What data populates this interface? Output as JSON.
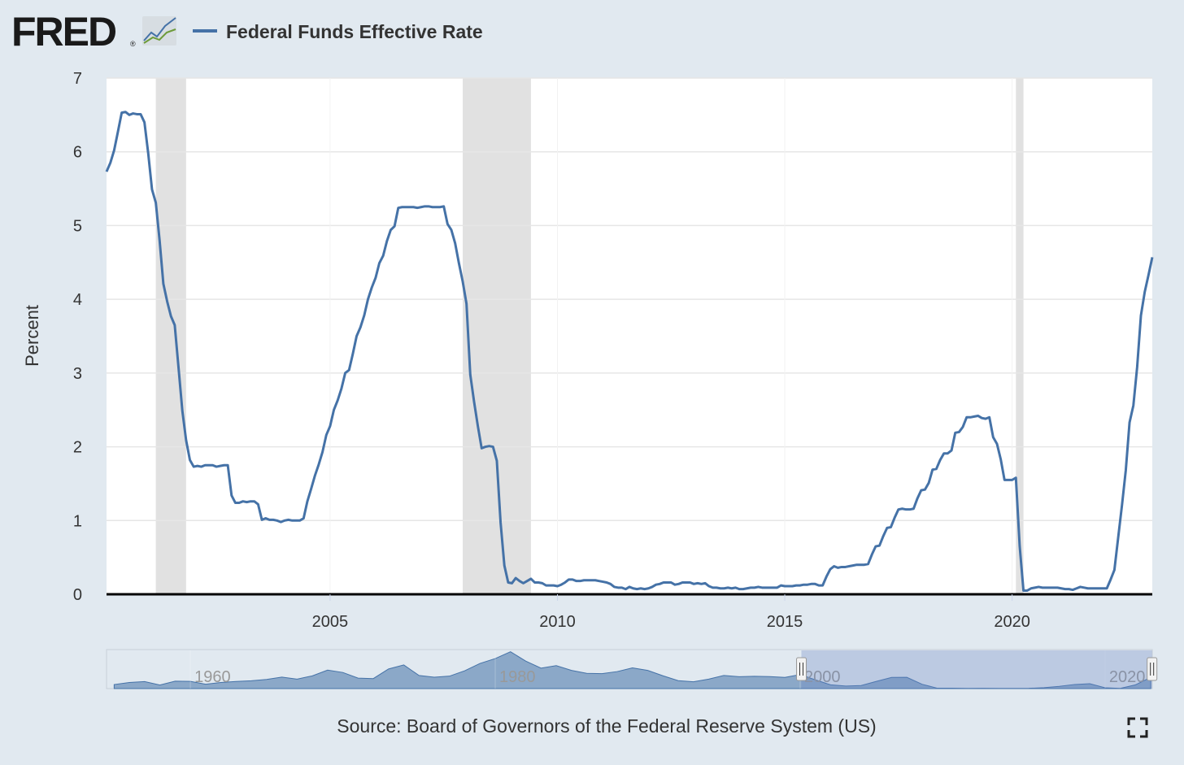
{
  "logo": "FRED",
  "logo_mark": "®",
  "chart_data": {
    "type": "line",
    "y_label": "Percent",
    "source": "Source: Board of Governors of the Federal Reserve System (US)",
    "x": [
      2000.083,
      2000.167,
      2000.25,
      2000.333,
      2000.417,
      2000.5,
      2000.583,
      2000.667,
      2000.75,
      2000.833,
      2000.917,
      2001,
      2001.083,
      2001.167,
      2001.25,
      2001.333,
      2001.417,
      2001.5,
      2001.583,
      2001.667,
      2001.75,
      2001.833,
      2001.917,
      2002,
      2002.083,
      2002.167,
      2002.25,
      2002.333,
      2002.417,
      2002.5,
      2002.583,
      2002.667,
      2002.75,
      2002.833,
      2002.917,
      2003,
      2003.083,
      2003.167,
      2003.25,
      2003.333,
      2003.417,
      2003.5,
      2003.583,
      2003.667,
      2003.75,
      2003.833,
      2003.917,
      2004,
      2004.083,
      2004.167,
      2004.25,
      2004.333,
      2004.417,
      2004.5,
      2004.583,
      2004.667,
      2004.75,
      2004.833,
      2004.917,
      2005,
      2005.083,
      2005.167,
      2005.25,
      2005.333,
      2005.417,
      2005.5,
      2005.583,
      2005.667,
      2005.75,
      2005.833,
      2005.917,
      2006,
      2006.083,
      2006.167,
      2006.25,
      2006.333,
      2006.417,
      2006.5,
      2006.583,
      2006.667,
      2006.75,
      2006.833,
      2006.917,
      2007,
      2007.083,
      2007.167,
      2007.25,
      2007.333,
      2007.417,
      2007.5,
      2007.583,
      2007.667,
      2007.75,
      2007.833,
      2007.917,
      2008,
      2008.083,
      2008.167,
      2008.25,
      2008.333,
      2008.417,
      2008.5,
      2008.583,
      2008.667,
      2008.75,
      2008.833,
      2008.917,
      2009,
      2009.083,
      2009.167,
      2009.25,
      2009.333,
      2009.417,
      2009.5,
      2009.583,
      2009.667,
      2009.75,
      2009.833,
      2009.917,
      2010,
      2010.083,
      2010.167,
      2010.25,
      2010.333,
      2010.417,
      2010.5,
      2010.583,
      2010.667,
      2010.75,
      2010.833,
      2010.917,
      2011,
      2011.083,
      2011.167,
      2011.25,
      2011.333,
      2011.417,
      2011.5,
      2011.583,
      2011.667,
      2011.75,
      2011.833,
      2011.917,
      2012,
      2012.083,
      2012.167,
      2012.25,
      2012.333,
      2012.417,
      2012.5,
      2012.583,
      2012.667,
      2012.75,
      2012.833,
      2012.917,
      2013,
      2013.083,
      2013.167,
      2013.25,
      2013.333,
      2013.417,
      2013.5,
      2013.583,
      2013.667,
      2013.75,
      2013.833,
      2013.917,
      2014,
      2014.083,
      2014.167,
      2014.25,
      2014.333,
      2014.417,
      2014.5,
      2014.583,
      2014.667,
      2014.75,
      2014.833,
      2014.917,
      2015,
      2015.083,
      2015.167,
      2015.25,
      2015.333,
      2015.417,
      2015.5,
      2015.583,
      2015.667,
      2015.75,
      2015.833,
      2015.917,
      2016,
      2016.083,
      2016.167,
      2016.25,
      2016.333,
      2016.417,
      2016.5,
      2016.583,
      2016.667,
      2016.75,
      2016.833,
      2016.917,
      2017,
      2017.083,
      2017.167,
      2017.25,
      2017.333,
      2017.417,
      2017.5,
      2017.583,
      2017.667,
      2017.75,
      2017.833,
      2017.917,
      2018,
      2018.083,
      2018.167,
      2018.25,
      2018.333,
      2018.417,
      2018.5,
      2018.583,
      2018.667,
      2018.75,
      2018.833,
      2018.917,
      2019,
      2019.083,
      2019.167,
      2019.25,
      2019.333,
      2019.417,
      2019.5,
      2019.583,
      2019.667,
      2019.75,
      2019.833,
      2019.917,
      2020,
      2020.083,
      2020.167,
      2020.25,
      2020.333,
      2020.417,
      2020.5,
      2020.583,
      2020.667,
      2020.75,
      2020.833,
      2020.917,
      2021,
      2021.083,
      2021.167,
      2021.25,
      2021.333,
      2021.417,
      2021.5,
      2021.583,
      2021.667,
      2021.75,
      2021.833,
      2021.917,
      2022,
      2022.083,
      2022.167,
      2022.25,
      2022.333,
      2022.417,
      2022.5,
      2022.583,
      2022.667,
      2022.75,
      2022.833,
      2022.917,
      2023,
      2023.083
    ],
    "series": [
      {
        "name": "Federal Funds Effective Rate",
        "color": "#4572a7",
        "values": [
          5.73,
          5.85,
          6.02,
          6.27,
          6.53,
          6.54,
          6.5,
          6.52,
          6.51,
          6.51,
          6.4,
          5.98,
          5.49,
          5.31,
          4.8,
          4.21,
          3.97,
          3.77,
          3.65,
          3.07,
          2.49,
          2.09,
          1.82,
          1.73,
          1.74,
          1.73,
          1.75,
          1.75,
          1.75,
          1.73,
          1.74,
          1.75,
          1.75,
          1.34,
          1.24,
          1.24,
          1.26,
          1.25,
          1.26,
          1.26,
          1.22,
          1.01,
          1.03,
          1.01,
          1.01,
          1.0,
          0.98,
          1.0,
          1.01,
          1.0,
          1.0,
          1.0,
          1.03,
          1.26,
          1.43,
          1.61,
          1.76,
          1.93,
          2.16,
          2.28,
          2.5,
          2.63,
          2.79,
          3.0,
          3.04,
          3.26,
          3.5,
          3.62,
          3.78,
          4.0,
          4.16,
          4.29,
          4.49,
          4.59,
          4.79,
          4.94,
          4.99,
          5.24,
          5.25,
          5.25,
          5.25,
          5.25,
          5.24,
          5.25,
          5.26,
          5.26,
          5.25,
          5.25,
          5.25,
          5.26,
          5.02,
          4.94,
          4.76,
          4.49,
          4.24,
          3.94,
          2.98,
          2.61,
          2.28,
          1.98,
          2.0,
          2.01,
          2.0,
          1.81,
          0.97,
          0.39,
          0.16,
          0.15,
          0.22,
          0.18,
          0.15,
          0.18,
          0.21,
          0.16,
          0.16,
          0.15,
          0.12,
          0.12,
          0.12,
          0.11,
          0.13,
          0.16,
          0.2,
          0.2,
          0.18,
          0.18,
          0.19,
          0.19,
          0.19,
          0.19,
          0.18,
          0.17,
          0.16,
          0.14,
          0.1,
          0.09,
          0.09,
          0.07,
          0.1,
          0.08,
          0.07,
          0.08,
          0.07,
          0.08,
          0.1,
          0.13,
          0.14,
          0.16,
          0.16,
          0.16,
          0.13,
          0.14,
          0.16,
          0.16,
          0.16,
          0.14,
          0.15,
          0.14,
          0.15,
          0.11,
          0.09,
          0.09,
          0.08,
          0.08,
          0.09,
          0.08,
          0.09,
          0.07,
          0.07,
          0.08,
          0.09,
          0.09,
          0.1,
          0.09,
          0.09,
          0.09,
          0.09,
          0.09,
          0.12,
          0.11,
          0.11,
          0.11,
          0.12,
          0.12,
          0.13,
          0.13,
          0.14,
          0.14,
          0.12,
          0.12,
          0.24,
          0.34,
          0.38,
          0.36,
          0.37,
          0.37,
          0.38,
          0.39,
          0.4,
          0.4,
          0.4,
          0.41,
          0.54,
          0.65,
          0.66,
          0.79,
          0.9,
          0.91,
          1.04,
          1.15,
          1.16,
          1.15,
          1.15,
          1.16,
          1.3,
          1.41,
          1.42,
          1.51,
          1.69,
          1.7,
          1.82,
          1.91,
          1.91,
          1.95,
          2.19,
          2.2,
          2.27,
          2.4,
          2.4,
          2.41,
          2.42,
          2.39,
          2.38,
          2.4,
          2.13,
          2.04,
          1.83,
          1.55,
          1.55,
          1.55,
          1.58,
          0.65,
          0.05,
          0.05,
          0.08,
          0.09,
          0.1,
          0.09,
          0.09,
          0.09,
          0.09,
          0.09,
          0.08,
          0.07,
          0.07,
          0.06,
          0.08,
          0.1,
          0.09,
          0.08,
          0.08,
          0.08,
          0.08,
          0.08,
          0.08,
          0.2,
          0.33,
          0.77,
          1.21,
          1.68,
          2.33,
          2.56,
          3.08,
          3.78,
          4.1,
          4.33,
          4.57
        ]
      }
    ],
    "xlim": [
      2000.083,
      2023.083
    ],
    "xticks": [
      2005,
      2010,
      2015,
      2020
    ],
    "ylim": [
      0,
      7
    ],
    "yticks": [
      0,
      1,
      2,
      3,
      4,
      5,
      6,
      7
    ],
    "grid": true,
    "recessions": [
      [
        2001.167,
        2001.833
      ],
      [
        2007.917,
        2009.417
      ],
      [
        2020.083,
        2020.25
      ]
    ],
    "navigator": {
      "x": [
        1955,
        1956,
        1957,
        1958,
        1959,
        1960,
        1961,
        1962,
        1963,
        1964,
        1965,
        1966,
        1967,
        1968,
        1969,
        1970,
        1971,
        1972,
        1973,
        1974,
        1975,
        1976,
        1977,
        1978,
        1979,
        1980,
        1981,
        1982,
        1983,
        1984,
        1985,
        1986,
        1987,
        1988,
        1989,
        1990,
        1991,
        1992,
        1993,
        1994,
        1995,
        1996,
        1997,
        1998,
        1999,
        2000,
        2001,
        2002,
        2003,
        2004,
        2005,
        2006,
        2007,
        2008,
        2009,
        2010,
        2011,
        2012,
        2013,
        2014,
        2015,
        2016,
        2017,
        2018,
        2019,
        2020,
        2021,
        2022,
        2023
      ],
      "values": [
        1.79,
        2.73,
        3.11,
        1.57,
        3.31,
        3.21,
        1.95,
        2.71,
        3.18,
        3.5,
        4.07,
        5.11,
        4.22,
        5.66,
        8.21,
        7.17,
        4.67,
        4.44,
        8.74,
        10.51,
        5.82,
        5.05,
        5.54,
        7.94,
        11.2,
        13.35,
        16.39,
        12.24,
        9.09,
        10.23,
        8.1,
        6.8,
        6.66,
        7.57,
        9.21,
        8.1,
        5.69,
        3.52,
        3.02,
        4.2,
        5.84,
        5.3,
        5.46,
        5.35,
        4.97,
        6.24,
        3.88,
        1.67,
        1.13,
        1.35,
        3.22,
        4.97,
        5.02,
        1.92,
        0.16,
        0.18,
        0.1,
        0.14,
        0.11,
        0.09,
        0.13,
        0.4,
        1.0,
        1.83,
        2.16,
        0.38,
        0.08,
        1.68,
        5.02
      ],
      "xlim": [
        1954.5,
        2023.1
      ],
      "ylim": [
        0,
        17
      ],
      "xticks": [
        1960,
        1980,
        2000,
        2020
      ]
    }
  }
}
